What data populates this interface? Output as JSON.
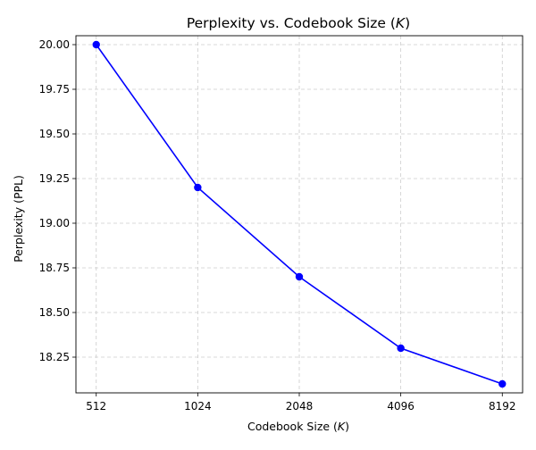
{
  "chart_data": {
    "type": "line",
    "title": "Perplexity vs. Codebook Size (K)",
    "title_parts": {
      "prefix": "Perplexity vs. Codebook Size (",
      "var": "K",
      "suffix": ")"
    },
    "xlabel": "Codebook Size (K)",
    "xlabel_parts": {
      "prefix": "Codebook Size (",
      "var": "K",
      "suffix": ")"
    },
    "ylabel": "Perplexity (PPL)",
    "x_scale": "log2",
    "categories": [
      "512",
      "1024",
      "2048",
      "4096",
      "8192"
    ],
    "x": [
      512,
      1024,
      2048,
      4096,
      8192
    ],
    "series": [
      {
        "values": [
          20.0,
          19.2,
          18.7,
          18.3,
          18.1
        ],
        "color": "#0000ff",
        "marker": "circle"
      }
    ],
    "ylim": [
      18.05,
      20.05
    ],
    "yticks": [
      18.25,
      18.5,
      18.75,
      19.0,
      19.25,
      19.5,
      19.75,
      20.0
    ],
    "ytick_labels": [
      "18.25",
      "18.50",
      "18.75",
      "19.00",
      "19.25",
      "19.50",
      "19.75",
      "20.00"
    ],
    "grid": true,
    "grid_color": "#cccccc",
    "grid_style": "dashed",
    "legend": "none"
  }
}
